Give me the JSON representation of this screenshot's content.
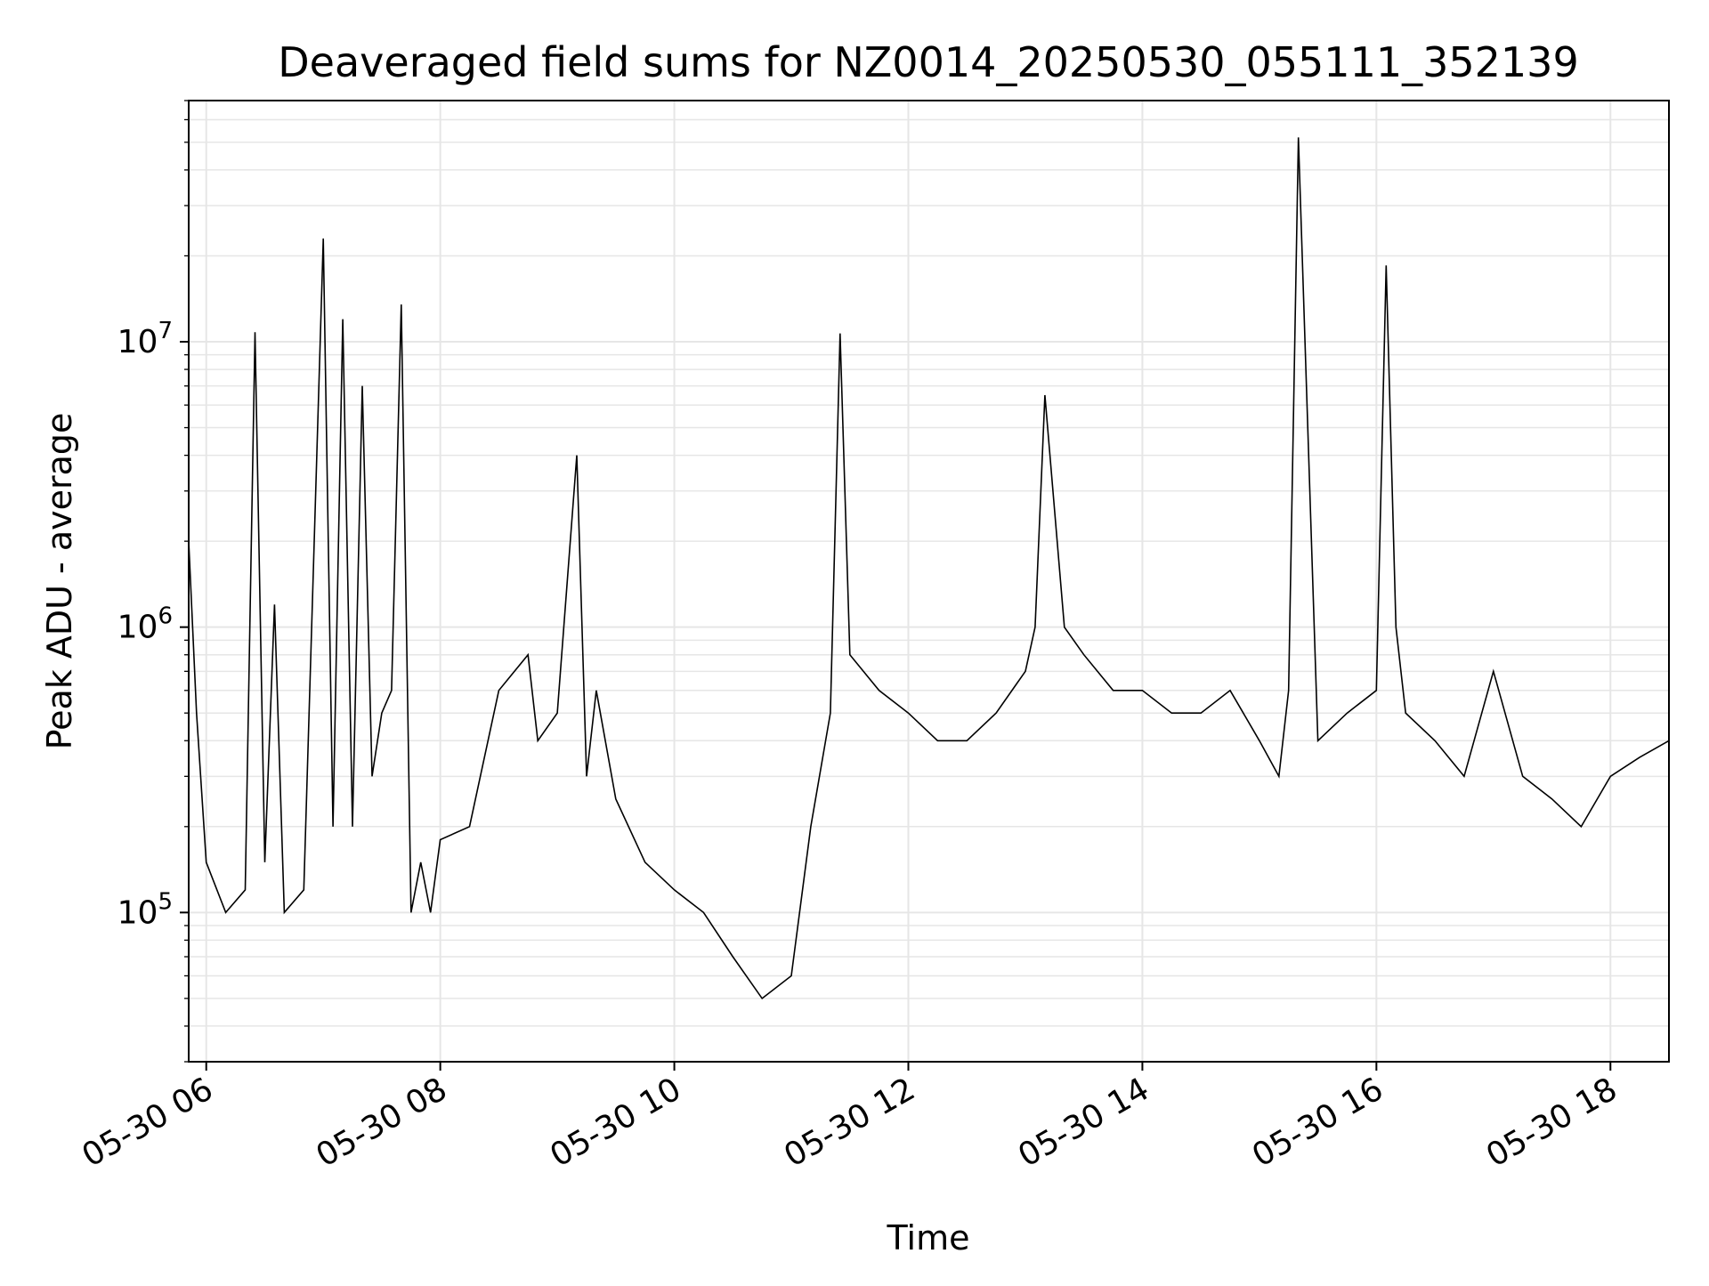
{
  "chart_data": {
    "type": "line",
    "title": "Deaveraged field sums for NZ0014_20250530_055111_352139",
    "xlabel": "Time",
    "ylabel": "Peak ADU - average",
    "yscale": "log",
    "ylim": [
      30000,
      70000000
    ],
    "xlim": [
      "2025-05-30 05:51",
      "2025-05-30 18:30"
    ],
    "x_ticks": [
      {
        "value": "2025-05-30 06:00",
        "label": "05-30 06"
      },
      {
        "value": "2025-05-30 08:00",
        "label": "05-30 08"
      },
      {
        "value": "2025-05-30 10:00",
        "label": "05-30 10"
      },
      {
        "value": "2025-05-30 12:00",
        "label": "05-30 12"
      },
      {
        "value": "2025-05-30 14:00",
        "label": "05-30 14"
      },
      {
        "value": "2025-05-30 16:00",
        "label": "05-30 16"
      },
      {
        "value": "2025-05-30 18:00",
        "label": "05-30 18"
      }
    ],
    "y_ticks": [
      {
        "value": 100000,
        "base": "10",
        "exp": "5"
      },
      {
        "value": 1000000,
        "base": "10",
        "exp": "6"
      },
      {
        "value": 10000000,
        "base": "10",
        "exp": "7"
      }
    ],
    "grid": true,
    "line_color": "#000000",
    "grid_color": "#e6e6e6",
    "series": [
      {
        "x": [
          "2025-05-30 05:51",
          "2025-05-30 05:55",
          "2025-05-30 06:00",
          "2025-05-30 06:10",
          "2025-05-30 06:20",
          "2025-05-30 06:25",
          "2025-05-30 06:30",
          "2025-05-30 06:35",
          "2025-05-30 06:40",
          "2025-05-30 06:50",
          "2025-05-30 07:00",
          "2025-05-30 07:05",
          "2025-05-30 07:10",
          "2025-05-30 07:15",
          "2025-05-30 07:20",
          "2025-05-30 07:25",
          "2025-05-30 07:30",
          "2025-05-30 07:35",
          "2025-05-30 07:40",
          "2025-05-30 07:45",
          "2025-05-30 07:50",
          "2025-05-30 07:55",
          "2025-05-30 08:00",
          "2025-05-30 08:15",
          "2025-05-30 08:30",
          "2025-05-30 08:45",
          "2025-05-30 08:50",
          "2025-05-30 09:00",
          "2025-05-30 09:10",
          "2025-05-30 09:15",
          "2025-05-30 09:20",
          "2025-05-30 09:30",
          "2025-05-30 09:45",
          "2025-05-30 10:00",
          "2025-05-30 10:15",
          "2025-05-30 10:30",
          "2025-05-30 10:45",
          "2025-05-30 11:00",
          "2025-05-30 11:10",
          "2025-05-30 11:20",
          "2025-05-30 11:25",
          "2025-05-30 11:30",
          "2025-05-30 11:45",
          "2025-05-30 12:00",
          "2025-05-30 12:15",
          "2025-05-30 12:30",
          "2025-05-30 12:45",
          "2025-05-30 13:00",
          "2025-05-30 13:05",
          "2025-05-30 13:10",
          "2025-05-30 13:20",
          "2025-05-30 13:30",
          "2025-05-30 13:45",
          "2025-05-30 14:00",
          "2025-05-30 14:15",
          "2025-05-30 14:30",
          "2025-05-30 14:45",
          "2025-05-30 15:00",
          "2025-05-30 15:10",
          "2025-05-30 15:15",
          "2025-05-30 15:20",
          "2025-05-30 15:30",
          "2025-05-30 15:45",
          "2025-05-30 16:00",
          "2025-05-30 16:05",
          "2025-05-30 16:10",
          "2025-05-30 16:15",
          "2025-05-30 16:30",
          "2025-05-30 16:45",
          "2025-05-30 17:00",
          "2025-05-30 17:15",
          "2025-05-30 17:30",
          "2025-05-30 17:45",
          "2025-05-30 18:00",
          "2025-05-30 18:15",
          "2025-05-30 18:30"
        ],
        "y": [
          2000000,
          500000,
          150000,
          100000,
          120000,
          10800000,
          150000,
          1200000,
          100000,
          120000,
          23000000,
          200000,
          12000000,
          200000,
          7000000,
          300000,
          500000,
          600000,
          13500000,
          100000,
          150000,
          100000,
          180000,
          200000,
          600000,
          800000,
          400000,
          500000,
          4000000,
          300000,
          600000,
          250000,
          150000,
          120000,
          100000,
          70000,
          50000,
          60000,
          200000,
          500000,
          10700000,
          800000,
          600000,
          500000,
          400000,
          400000,
          500000,
          700000,
          1000000,
          6500000,
          1000000,
          800000,
          600000,
          600000,
          500000,
          500000,
          600000,
          400000,
          300000,
          600000,
          52000000,
          400000,
          500000,
          600000,
          18500000,
          1000000,
          500000,
          400000,
          300000,
          700000,
          300000,
          250000,
          200000,
          300000,
          350000,
          400000
        ]
      }
    ]
  }
}
